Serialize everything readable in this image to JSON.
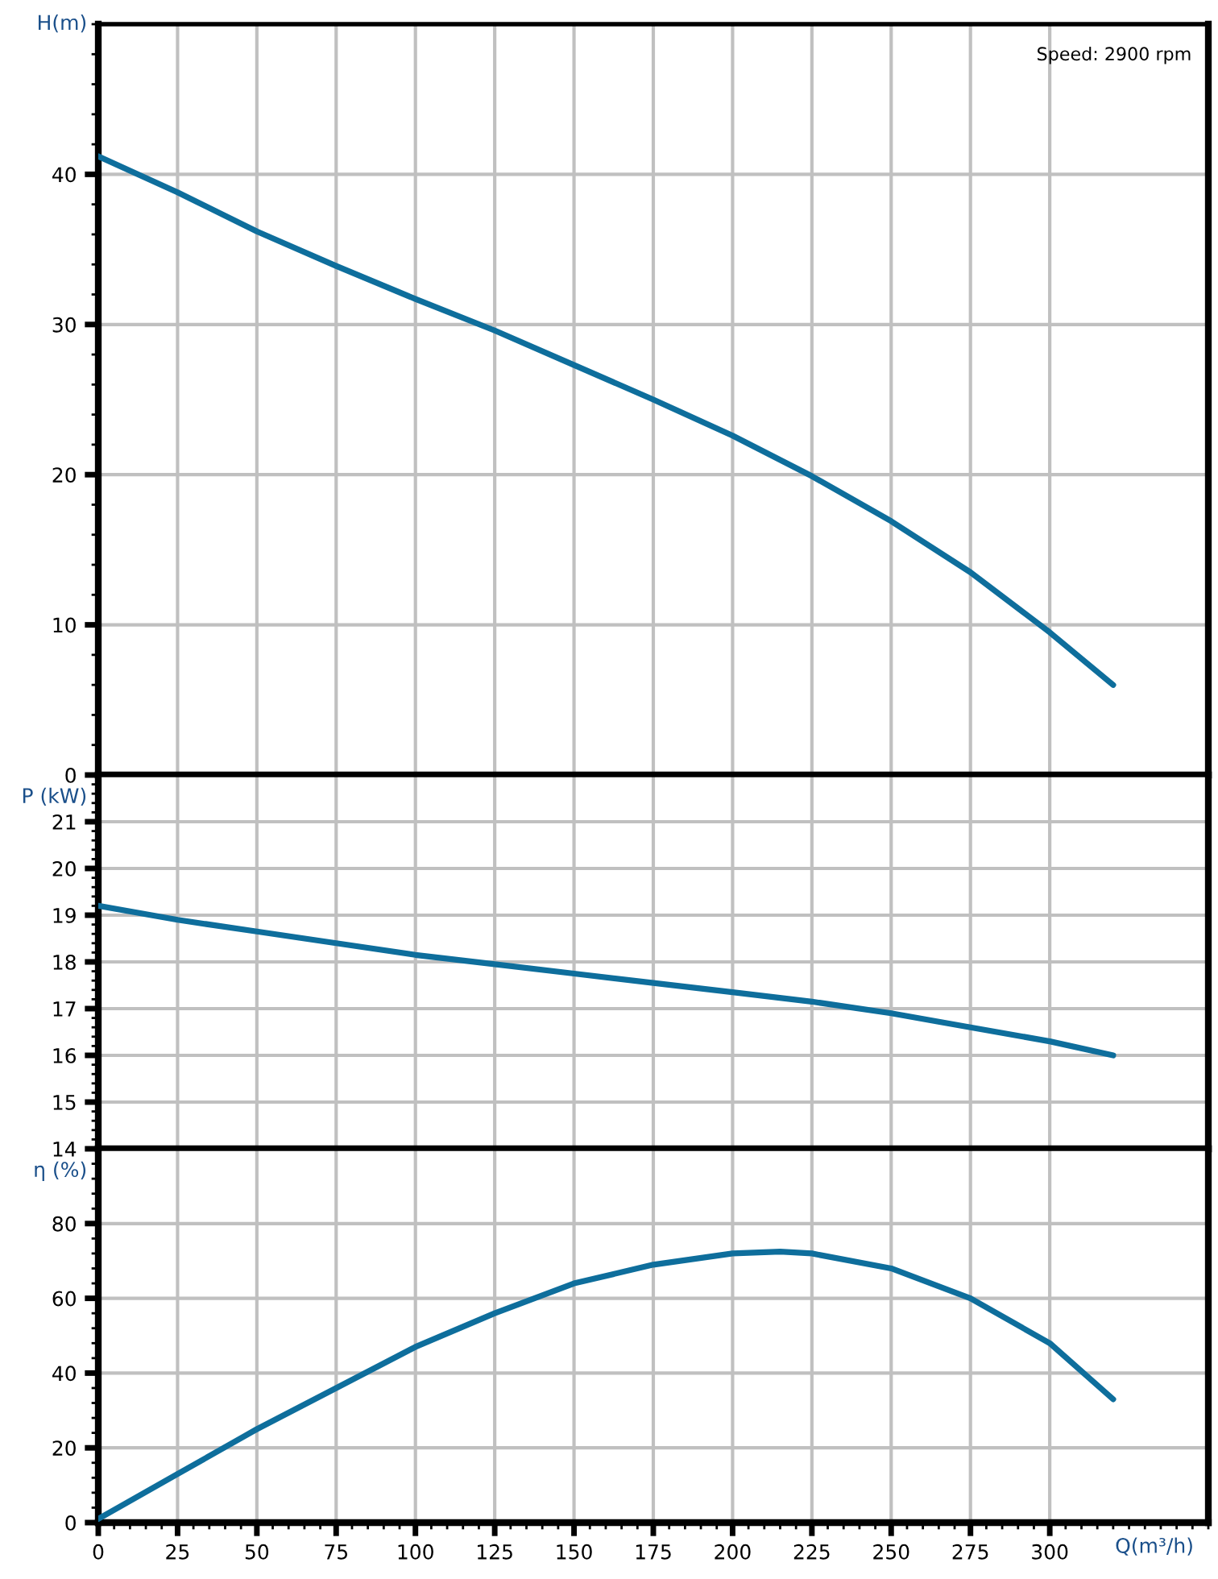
{
  "chart_data": [
    {
      "type": "line",
      "ylabel": "H(m)",
      "x": [
        0,
        25,
        50,
        75,
        100,
        125,
        150,
        175,
        200,
        225,
        250,
        275,
        300,
        320
      ],
      "xlim": [
        0,
        350
      ],
      "xticks": [
        0,
        25,
        50,
        75,
        100,
        125,
        150,
        175,
        200,
        225,
        250,
        275,
        300
      ],
      "ylim": [
        0,
        50
      ],
      "yticks": [
        0,
        10,
        20,
        30,
        40
      ],
      "grid": true,
      "tick_labels": "y",
      "marker": "none",
      "line_style": "solid",
      "annotations": [
        "Speed: 2900 rpm"
      ],
      "series": [
        {
          "color": "#0e6e9c",
          "values": [
            41.2,
            38.8,
            36.2,
            33.9,
            31.7,
            29.6,
            27.3,
            25.0,
            22.6,
            19.9,
            16.9,
            13.5,
            9.5,
            6.0
          ]
        }
      ]
    },
    {
      "type": "line",
      "ylabel": "P (kW)",
      "x": [
        0,
        25,
        50,
        75,
        100,
        125,
        150,
        175,
        200,
        225,
        250,
        275,
        300,
        320
      ],
      "xlim": [
        0,
        350
      ],
      "xticks": [
        0,
        25,
        50,
        75,
        100,
        125,
        150,
        175,
        200,
        225,
        250,
        275,
        300
      ],
      "ylim": [
        14,
        22
      ],
      "yticks": [
        14,
        15,
        16,
        17,
        18,
        19,
        20,
        21
      ],
      "grid": true,
      "tick_labels": "y",
      "marker": "none",
      "line_style": "solid",
      "series": [
        {
          "color": "#0e6e9c",
          "values": [
            19.2,
            18.9,
            18.65,
            18.4,
            18.15,
            17.95,
            17.75,
            17.55,
            17.35,
            17.15,
            16.9,
            16.6,
            16.3,
            16.0
          ]
        }
      ]
    },
    {
      "type": "line",
      "ylabel": "η (%)",
      "xlabel": "Q(m³/h)",
      "x": [
        0,
        25,
        50,
        75,
        100,
        125,
        150,
        175,
        200,
        215,
        225,
        250,
        275,
        300,
        320
      ],
      "xlim": [
        0,
        350
      ],
      "xticks": [
        0,
        25,
        50,
        75,
        100,
        125,
        150,
        175,
        200,
        225,
        250,
        275,
        300
      ],
      "ylim": [
        0,
        100
      ],
      "yticks": [
        0,
        20,
        40,
        60,
        80
      ],
      "grid": true,
      "marker": "none",
      "line_style": "solid",
      "series": [
        {
          "color": "#0e6e9c",
          "values": [
            1,
            13,
            25,
            36,
            47,
            56,
            64,
            69,
            72,
            72.5,
            72,
            68,
            60,
            48,
            33
          ]
        }
      ]
    }
  ]
}
